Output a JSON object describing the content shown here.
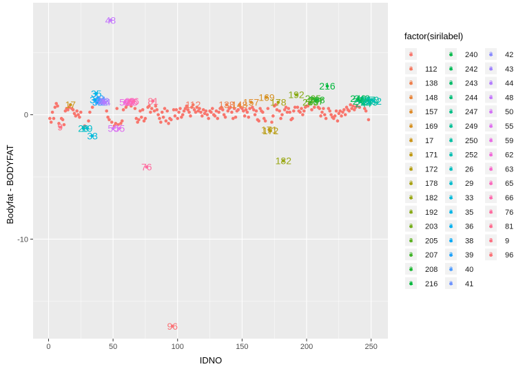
{
  "chart_data": {
    "type": "scatter",
    "xlabel": "IDNO",
    "ylabel": "Bodyfat - BODYFAT",
    "xlim": [
      -12,
      263
    ],
    "ylim": [
      -18,
      9
    ],
    "x_ticks": [
      0,
      50,
      100,
      150,
      200,
      250
    ],
    "y_ticks": [
      -10,
      0
    ],
    "grid": true,
    "panel_background": "#ebebeb",
    "grid_color": "#ffffff",
    "base_point_color": "#f8766d",
    "legend": {
      "title": "factor(sirilabel)",
      "placement": "right",
      "entries": [
        {
          "label": "",
          "color": "#f8766d"
        },
        {
          "label": "112",
          "color": "#f57a62"
        },
        {
          "label": "138",
          "color": "#ef7f4d"
        },
        {
          "label": "148",
          "color": "#e8853a"
        },
        {
          "label": "157",
          "color": "#df8b2a"
        },
        {
          "label": "169",
          "color": "#d69020"
        },
        {
          "label": "17",
          "color": "#cc9519"
        },
        {
          "label": "171",
          "color": "#c09a14"
        },
        {
          "label": "172",
          "color": "#b49e12"
        },
        {
          "label": "178",
          "color": "#a8a212"
        },
        {
          "label": "182",
          "color": "#99a713"
        },
        {
          "label": "192",
          "color": "#89aa16"
        },
        {
          "label": "203",
          "color": "#75ae1b"
        },
        {
          "label": "205",
          "color": "#5db121"
        },
        {
          "label": "207",
          "color": "#3fb428"
        },
        {
          "label": "208",
          "color": "#1bb631"
        },
        {
          "label": "216",
          "color": "#00b83c"
        },
        {
          "label": "240",
          "color": "#00ba4a"
        },
        {
          "label": "242",
          "color": "#00bb59"
        },
        {
          "label": "243",
          "color": "#00bc68"
        },
        {
          "label": "244",
          "color": "#00be78"
        },
        {
          "label": "247",
          "color": "#00bf87"
        },
        {
          "label": "249",
          "color": "#00c096"
        },
        {
          "label": "250",
          "color": "#00c0a5"
        },
        {
          "label": "252",
          "color": "#00c0b3"
        },
        {
          "label": "26",
          "color": "#00bfc1"
        },
        {
          "label": "29",
          "color": "#00bdce"
        },
        {
          "label": "33",
          "color": "#00badb"
        },
        {
          "label": "35",
          "color": "#00b5e7"
        },
        {
          "label": "36",
          "color": "#00b0f0"
        },
        {
          "label": "38",
          "color": "#00a9f7"
        },
        {
          "label": "39",
          "color": "#1fa2fc"
        },
        {
          "label": "40",
          "color": "#4a9aff"
        },
        {
          "label": "41",
          "color": "#6c92ff"
        },
        {
          "label": "42",
          "color": "#888aff"
        },
        {
          "label": "43",
          "color": "#9f83ff"
        },
        {
          "label": "44",
          "color": "#b37cff"
        },
        {
          "label": "48",
          "color": "#c477fc"
        },
        {
          "label": "50",
          "color": "#d373f6"
        },
        {
          "label": "55",
          "color": "#df6fef"
        },
        {
          "label": "59",
          "color": "#e96ce5"
        },
        {
          "label": "62",
          "color": "#f16ad9"
        },
        {
          "label": "63",
          "color": "#f769cb"
        },
        {
          "label": "65",
          "color": "#fb69bd"
        },
        {
          "label": "66",
          "color": "#fe6aae"
        },
        {
          "label": "76",
          "color": "#ff6b9f"
        },
        {
          "label": "81",
          "color": "#ff6d90"
        },
        {
          "label": "9",
          "color": "#fd7082"
        },
        {
          "label": "96",
          "color": "#fb7377"
        }
      ]
    },
    "labeled_points": [
      {
        "label": "9",
        "x": 9,
        "y": -1.0
      },
      {
        "label": "17",
        "x": 17,
        "y": 0.8
      },
      {
        "label": "26",
        "x": 27,
        "y": -1.1
      },
      {
        "label": "29",
        "x": 30,
        "y": -1.1
      },
      {
        "label": "33",
        "x": 34,
        "y": -1.7
      },
      {
        "label": "35",
        "x": 37,
        "y": 1.7
      },
      {
        "label": "36",
        "x": 36,
        "y": 1.2
      },
      {
        "label": "38",
        "x": 38,
        "y": 1.0
      },
      {
        "label": "39",
        "x": 39,
        "y": 1.3
      },
      {
        "label": "40",
        "x": 40,
        "y": 1.0
      },
      {
        "label": "41",
        "x": 41,
        "y": 1.2
      },
      {
        "label": "42",
        "x": 42,
        "y": 1.0
      },
      {
        "label": "43",
        "x": 43,
        "y": 1.1
      },
      {
        "label": "44",
        "x": 44,
        "y": 1.0
      },
      {
        "label": "48",
        "x": 48,
        "y": 7.6
      },
      {
        "label": "50",
        "x": 50,
        "y": -1.1
      },
      {
        "label": "55",
        "x": 55,
        "y": -1.1
      },
      {
        "label": "59",
        "x": 59,
        "y": 1.0
      },
      {
        "label": "62",
        "x": 62,
        "y": 1.0
      },
      {
        "label": "63",
        "x": 63,
        "y": 1.1
      },
      {
        "label": "65",
        "x": 65,
        "y": 1.0
      },
      {
        "label": "66",
        "x": 66,
        "y": 1.1
      },
      {
        "label": "76",
        "x": 76,
        "y": -4.2
      },
      {
        "label": "81",
        "x": 81,
        "y": 1.1
      },
      {
        "label": "96",
        "x": 96,
        "y": -17.0
      },
      {
        "label": "112",
        "x": 112,
        "y": 0.8
      },
      {
        "label": "138",
        "x": 138,
        "y": 0.8
      },
      {
        "label": "148",
        "x": 148,
        "y": 0.8
      },
      {
        "label": "157",
        "x": 157,
        "y": 1.0
      },
      {
        "label": "169",
        "x": 169,
        "y": 1.4
      },
      {
        "label": "171",
        "x": 171,
        "y": -1.2
      },
      {
        "label": "172",
        "x": 172,
        "y": -1.3
      },
      {
        "label": "178",
        "x": 178,
        "y": 1.0
      },
      {
        "label": "182",
        "x": 182,
        "y": -3.7
      },
      {
        "label": "192",
        "x": 192,
        "y": 1.6
      },
      {
        "label": "203",
        "x": 203,
        "y": 1.0
      },
      {
        "label": "205",
        "x": 205,
        "y": 1.3
      },
      {
        "label": "207",
        "x": 207,
        "y": 1.1
      },
      {
        "label": "208",
        "x": 208,
        "y": 1.2
      },
      {
        "label": "216",
        "x": 216,
        "y": 2.3
      },
      {
        "label": "240",
        "x": 240,
        "y": 1.3
      },
      {
        "label": "242",
        "x": 242,
        "y": 1.1
      },
      {
        "label": "243",
        "x": 243,
        "y": 1.3
      },
      {
        "label": "244",
        "x": 244,
        "y": 0.9
      },
      {
        "label": "247",
        "x": 247,
        "y": 1.2
      },
      {
        "label": "249",
        "x": 249,
        "y": 1.0
      },
      {
        "label": "250",
        "x": 250,
        "y": 1.2
      },
      {
        "label": "252",
        "x": 252,
        "y": 1.1
      }
    ],
    "points": [
      [
        1,
        -0.3
      ],
      [
        2,
        -0.6
      ],
      [
        3,
        0.2
      ],
      [
        4,
        -0.3
      ],
      [
        5,
        0.6
      ],
      [
        6,
        0.9
      ],
      [
        7,
        0.7
      ],
      [
        8,
        -0.7
      ],
      [
        10,
        -0.3
      ],
      [
        11,
        -0.4
      ],
      [
        12,
        -0.8
      ],
      [
        13,
        0.3
      ],
      [
        14,
        0.5
      ],
      [
        15,
        0.4
      ],
      [
        16,
        0.6
      ],
      [
        18,
        0.5
      ],
      [
        19,
        0.4
      ],
      [
        20,
        0.1
      ],
      [
        21,
        -0.1
      ],
      [
        22,
        0.3
      ],
      [
        23,
        0.0
      ],
      [
        24,
        -0.2
      ],
      [
        25,
        0.2
      ],
      [
        28,
        -0.9
      ],
      [
        31,
        -0.5
      ],
      [
        32,
        0.2
      ],
      [
        34,
        0.6
      ],
      [
        45,
        0.3
      ],
      [
        46,
        -0.2
      ],
      [
        47,
        -0.4
      ],
      [
        49,
        -0.6
      ],
      [
        51,
        -0.9
      ],
      [
        52,
        -0.7
      ],
      [
        53,
        0.5
      ],
      [
        54,
        -0.8
      ],
      [
        56,
        -0.7
      ],
      [
        57,
        -0.5
      ],
      [
        58,
        0.4
      ],
      [
        60,
        0.6
      ],
      [
        61,
        0.8
      ],
      [
        64,
        0.7
      ],
      [
        67,
        0.5
      ],
      [
        68,
        -0.3
      ],
      [
        69,
        -0.6
      ],
      [
        70,
        -0.4
      ],
      [
        71,
        0.3
      ],
      [
        72,
        -0.2
      ],
      [
        73,
        0.4
      ],
      [
        74,
        -0.5
      ],
      [
        75,
        -0.3
      ],
      [
        77,
        0.6
      ],
      [
        78,
        0.7
      ],
      [
        79,
        0.2
      ],
      [
        80,
        0.5
      ],
      [
        82,
        0.3
      ],
      [
        83,
        0.7
      ],
      [
        84,
        0.4
      ],
      [
        85,
        0.0
      ],
      [
        86,
        -0.3
      ],
      [
        87,
        -0.6
      ],
      [
        88,
        0.2
      ],
      [
        89,
        -0.2
      ],
      [
        90,
        0.5
      ],
      [
        91,
        -0.5
      ],
      [
        92,
        0.3
      ],
      [
        93,
        -0.7
      ],
      [
        94,
        -0.3
      ],
      [
        95,
        -0.4
      ],
      [
        97,
        0.4
      ],
      [
        98,
        -0.1
      ],
      [
        99,
        0.4
      ],
      [
        100,
        -0.3
      ],
      [
        101,
        0.2
      ],
      [
        102,
        0.5
      ],
      [
        103,
        -0.2
      ],
      [
        104,
        0.0
      ],
      [
        105,
        0.3
      ],
      [
        106,
        0.5
      ],
      [
        107,
        0.7
      ],
      [
        108,
        0.4
      ],
      [
        109,
        0.2
      ],
      [
        110,
        -0.1
      ],
      [
        111,
        0.6
      ],
      [
        113,
        0.4
      ],
      [
        114,
        0.2
      ],
      [
        115,
        0.6
      ],
      [
        116,
        0.3
      ],
      [
        117,
        0.5
      ],
      [
        118,
        0.2
      ],
      [
        119,
        -0.1
      ],
      [
        120,
        0.4
      ],
      [
        121,
        0.1
      ],
      [
        122,
        0.3
      ],
      [
        123,
        0.0
      ],
      [
        124,
        -0.3
      ],
      [
        125,
        0.3
      ],
      [
        126,
        0.2
      ],
      [
        127,
        0.5
      ],
      [
        128,
        0.0
      ],
      [
        129,
        -0.1
      ],
      [
        130,
        0.3
      ],
      [
        131,
        -0.3
      ],
      [
        132,
        0.2
      ],
      [
        133,
        0.5
      ],
      [
        134,
        0.6
      ],
      [
        135,
        0.4
      ],
      [
        136,
        0.0
      ],
      [
        137,
        -0.2
      ],
      [
        139,
        0.3
      ],
      [
        140,
        0.5
      ],
      [
        141,
        0.6
      ],
      [
        142,
        0.2
      ],
      [
        143,
        -0.3
      ],
      [
        144,
        0.5
      ],
      [
        145,
        -0.2
      ],
      [
        146,
        0.3
      ],
      [
        147,
        0.4
      ],
      [
        149,
        0.6
      ],
      [
        150,
        0.5
      ],
      [
        151,
        0.3
      ],
      [
        152,
        -0.1
      ],
      [
        153,
        0.4
      ],
      [
        154,
        0.2
      ],
      [
        155,
        -0.2
      ],
      [
        156,
        0.5
      ],
      [
        158,
        0.6
      ],
      [
        159,
        0.4
      ],
      [
        160,
        0.0
      ],
      [
        161,
        0.3
      ],
      [
        162,
        -0.4
      ],
      [
        163,
        -0.5
      ],
      [
        164,
        0.5
      ],
      [
        165,
        0.3
      ],
      [
        166,
        0.2
      ],
      [
        167,
        -0.3
      ],
      [
        168,
        -0.5
      ],
      [
        170,
        0.5
      ],
      [
        173,
        -0.6
      ],
      [
        174,
        -0.1
      ],
      [
        175,
        0.7
      ],
      [
        176,
        0.8
      ],
      [
        177,
        0.4
      ],
      [
        179,
        0.3
      ],
      [
        180,
        -0.3
      ],
      [
        181,
        0.0
      ],
      [
        183,
        0.4
      ],
      [
        184,
        0.6
      ],
      [
        185,
        0.2
      ],
      [
        186,
        0.5
      ],
      [
        187,
        0.2
      ],
      [
        188,
        -0.4
      ],
      [
        189,
        -0.3
      ],
      [
        190,
        0.3
      ],
      [
        191,
        0.6
      ],
      [
        193,
        0.6
      ],
      [
        194,
        0.3
      ],
      [
        195,
        0.2
      ],
      [
        196,
        0.5
      ],
      [
        197,
        0.0
      ],
      [
        198,
        0.3
      ],
      [
        199,
        0.6
      ],
      [
        200,
        0.7
      ],
      [
        201,
        0.7
      ],
      [
        202,
        0.9
      ],
      [
        204,
        0.4
      ],
      [
        206,
        0.6
      ],
      [
        209,
        0.6
      ],
      [
        210,
        0.5
      ],
      [
        211,
        -0.1
      ],
      [
        212,
        0.2
      ],
      [
        213,
        0.5
      ],
      [
        214,
        0.0
      ],
      [
        215,
        -0.3
      ],
      [
        217,
        0.5
      ],
      [
        218,
        0.3
      ],
      [
        219,
        0.0
      ],
      [
        220,
        -0.2
      ],
      [
        221,
        -0.3
      ],
      [
        222,
        -0.1
      ],
      [
        223,
        0.3
      ],
      [
        224,
        -0.5
      ],
      [
        225,
        0.1
      ],
      [
        226,
        0.3
      ],
      [
        227,
        -0.1
      ],
      [
        228,
        0.2
      ],
      [
        229,
        0.4
      ],
      [
        230,
        0.0
      ],
      [
        231,
        0.6
      ],
      [
        232,
        0.4
      ],
      [
        233,
        0.3
      ],
      [
        234,
        0.8
      ],
      [
        235,
        0.5
      ],
      [
        236,
        0.7
      ],
      [
        237,
        0.4
      ],
      [
        238,
        0.6
      ],
      [
        239,
        0.7
      ],
      [
        241,
        0.6
      ],
      [
        245,
        0.5
      ],
      [
        246,
        0.3
      ],
      [
        248,
        -0.4
      ]
    ]
  }
}
